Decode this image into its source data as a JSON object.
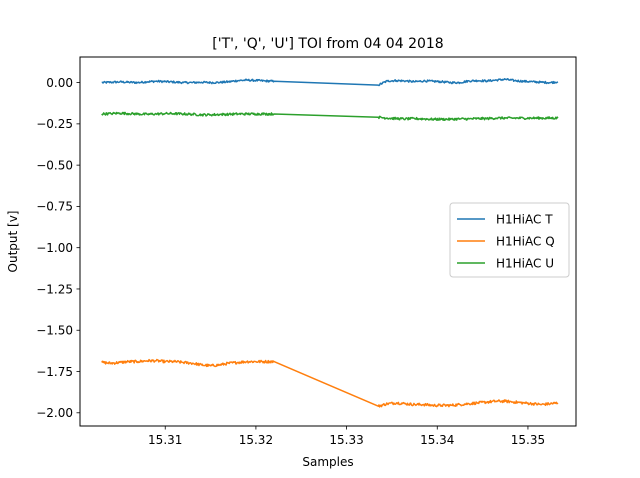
{
  "chart_data": {
    "type": "line",
    "title": "['T', 'Q', 'U'] TOI from 04 04 2018",
    "xlabel": "Samples",
    "ylabel": "Output [v]",
    "xlim": [
      15.3006,
      15.3553
    ],
    "ylim": [
      -2.08,
      0.155
    ],
    "xticks": [
      {
        "value": 15.31,
        "label": "15.31"
      },
      {
        "value": 15.32,
        "label": "15.32"
      },
      {
        "value": 15.33,
        "label": "15.33"
      },
      {
        "value": 15.34,
        "label": "15.34"
      },
      {
        "value": 15.35,
        "label": "15.35"
      }
    ],
    "yticks": [
      {
        "value": 0.0,
        "label": "0.00"
      },
      {
        "value": -0.25,
        "label": "−0.25"
      },
      {
        "value": -0.5,
        "label": "−0.50"
      },
      {
        "value": -0.75,
        "label": "−0.75"
      },
      {
        "value": -1.0,
        "label": "−1.00"
      },
      {
        "value": -1.25,
        "label": "−1.25"
      },
      {
        "value": -1.5,
        "label": "−1.50"
      },
      {
        "value": -1.75,
        "label": "−1.75"
      },
      {
        "value": -2.0,
        "label": "−2.00"
      }
    ],
    "grid": false,
    "legend_position": "center-right",
    "series": [
      {
        "name": "H1HiAC T",
        "color": "#1f77b4",
        "noise": 0.006,
        "x": [
          15.303,
          15.304,
          15.305,
          15.306,
          15.307,
          15.308,
          15.309,
          15.31,
          15.311,
          15.312,
          15.313,
          15.314,
          15.315,
          15.316,
          15.317,
          15.318,
          15.319,
          15.32,
          15.321,
          15.322,
          15.3335,
          15.3345,
          15.3355,
          15.3365,
          15.3375,
          15.3385,
          15.3395,
          15.3405,
          15.3415,
          15.3425,
          15.3435,
          15.3445,
          15.3455,
          15.3465,
          15.3475,
          15.3485,
          15.3495,
          15.3505,
          15.3515,
          15.3525,
          15.3533
        ],
        "y": [
          0.0,
          0.002,
          0.004,
          0.002,
          0.0,
          0.005,
          0.008,
          0.006,
          0.003,
          0.0,
          0.0,
          0.002,
          0.0,
          0.001,
          0.005,
          0.012,
          0.015,
          0.013,
          0.01,
          0.008,
          -0.015,
          0.01,
          0.012,
          0.01,
          0.005,
          0.01,
          0.008,
          0.005,
          0.0,
          0.0,
          0.01,
          0.012,
          0.01,
          0.015,
          0.02,
          0.012,
          0.008,
          0.005,
          0.002,
          0.0,
          0.005
        ]
      },
      {
        "name": "H1HiAC Q",
        "color": "#ff7f0e",
        "noise": 0.008,
        "x": [
          15.303,
          15.304,
          15.305,
          15.306,
          15.307,
          15.308,
          15.309,
          15.31,
          15.311,
          15.312,
          15.313,
          15.314,
          15.315,
          15.316,
          15.317,
          15.318,
          15.319,
          15.32,
          15.321,
          15.322,
          15.3335,
          15.3345,
          15.3355,
          15.3365,
          15.3375,
          15.3385,
          15.3395,
          15.3405,
          15.3415,
          15.3425,
          15.3435,
          15.3445,
          15.3455,
          15.3465,
          15.3475,
          15.3485,
          15.3495,
          15.3505,
          15.3515,
          15.3525,
          15.3533
        ],
        "y": [
          -1.695,
          -1.7,
          -1.695,
          -1.69,
          -1.69,
          -1.685,
          -1.685,
          -1.69,
          -1.69,
          -1.695,
          -1.7,
          -1.71,
          -1.715,
          -1.71,
          -1.7,
          -1.695,
          -1.69,
          -1.69,
          -1.69,
          -1.69,
          -1.96,
          -1.945,
          -1.94,
          -1.945,
          -1.95,
          -1.95,
          -1.955,
          -1.955,
          -1.955,
          -1.95,
          -1.945,
          -1.94,
          -1.935,
          -1.93,
          -1.93,
          -1.935,
          -1.94,
          -1.945,
          -1.95,
          -1.945,
          -1.94
        ]
      },
      {
        "name": "H1HiAC U",
        "color": "#2ca02c",
        "noise": 0.007,
        "x": [
          15.303,
          15.304,
          15.305,
          15.306,
          15.307,
          15.308,
          15.309,
          15.31,
          15.311,
          15.312,
          15.313,
          15.314,
          15.315,
          15.316,
          15.317,
          15.318,
          15.319,
          15.32,
          15.321,
          15.322,
          15.3335,
          15.3345,
          15.3355,
          15.3365,
          15.3375,
          15.3385,
          15.3395,
          15.3405,
          15.3415,
          15.3425,
          15.3435,
          15.3445,
          15.3455,
          15.3465,
          15.3475,
          15.3485,
          15.3495,
          15.3505,
          15.3515,
          15.3525,
          15.3533
        ],
        "y": [
          -0.19,
          -0.188,
          -0.185,
          -0.188,
          -0.19,
          -0.192,
          -0.19,
          -0.188,
          -0.188,
          -0.19,
          -0.192,
          -0.195,
          -0.195,
          -0.193,
          -0.192,
          -0.19,
          -0.19,
          -0.19,
          -0.19,
          -0.19,
          -0.21,
          -0.215,
          -0.218,
          -0.22,
          -0.218,
          -0.22,
          -0.222,
          -0.222,
          -0.222,
          -0.22,
          -0.22,
          -0.218,
          -0.218,
          -0.215,
          -0.215,
          -0.215,
          -0.215,
          -0.215,
          -0.215,
          -0.215,
          -0.215
        ]
      }
    ]
  }
}
